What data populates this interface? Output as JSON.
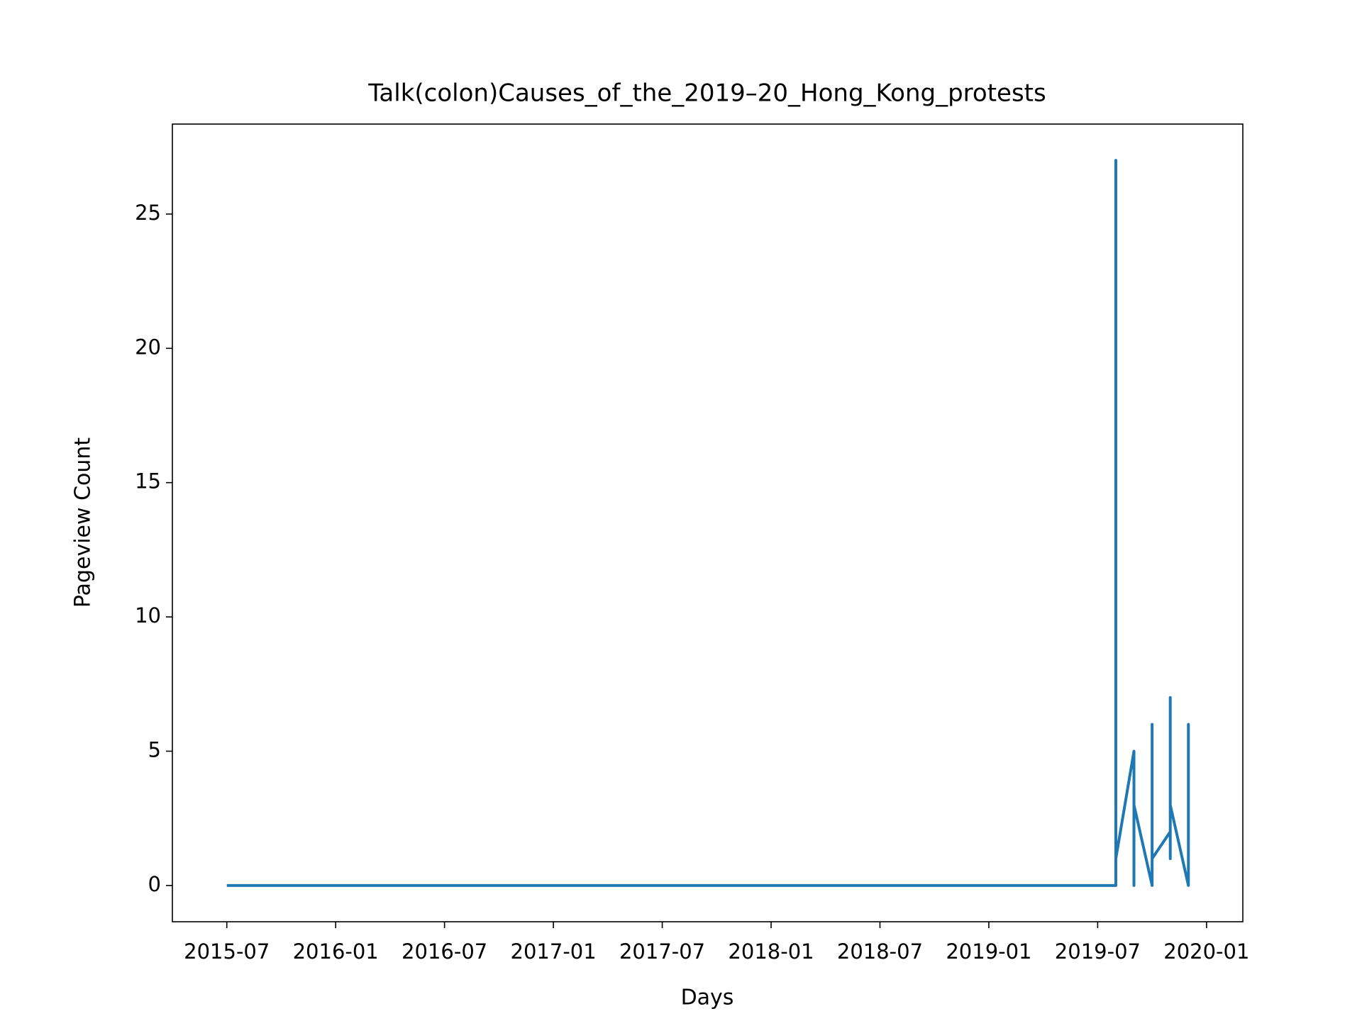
{
  "chart_data": {
    "type": "line",
    "title": "Talk(colon)Causes_of_the_2019–20_Hong_Kong_protests",
    "xlabel": "Days",
    "ylabel": "Pageview Count",
    "x": [
      "2015-07",
      "2019-08",
      "2019-08",
      "2019-08",
      "2019-08",
      "2019-08",
      "2019-09",
      "2019-09",
      "2019-09",
      "2019-09",
      "2019-09",
      "2019-09",
      "2019-09",
      "2019-10",
      "2019-10",
      "2019-10",
      "2019-10",
      "2019-11",
      "2019-11",
      "2019-11",
      "2019-11",
      "2019-11",
      "2019-11",
      "2019-12",
      "2019-12",
      "2019-12"
    ],
    "series": [
      {
        "name": "Pageview Count",
        "color": "#1f77b4",
        "values": [
          0,
          0,
          7,
          0,
          27,
          1,
          5,
          1,
          3,
          0,
          4,
          0,
          3,
          0,
          6,
          0,
          1,
          2,
          7,
          1,
          6,
          1,
          3,
          0,
          6,
          1
        ]
      }
    ],
    "xlim": [
      "2015-04",
      "2020-03"
    ],
    "xticks": [
      "2015-07",
      "2016-01",
      "2016-07",
      "2017-01",
      "2017-07",
      "2018-01",
      "2018-07",
      "2019-01",
      "2019-07",
      "2020-01"
    ],
    "ylim": [
      -1.35,
      28.35
    ],
    "yticks": [
      0,
      5,
      10,
      15,
      20,
      25
    ],
    "grid": false
  }
}
